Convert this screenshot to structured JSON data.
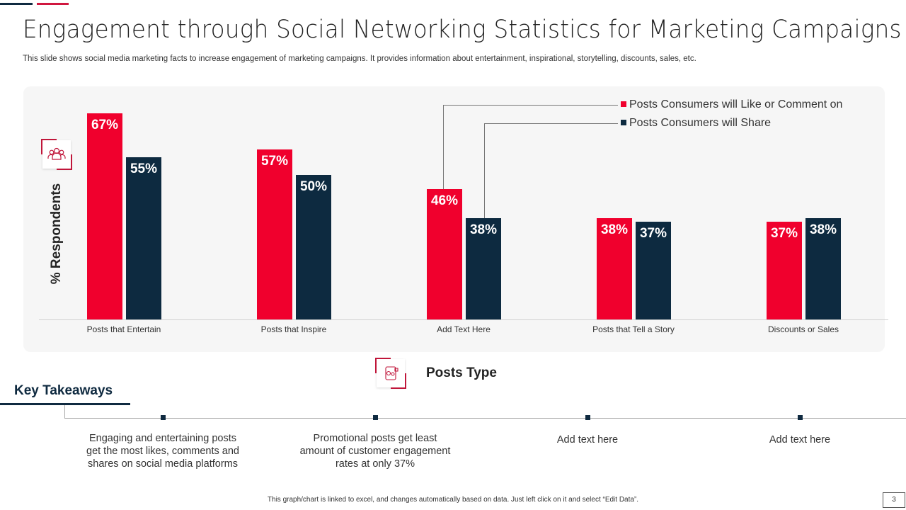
{
  "title": "Engagement through Social Networking Statistics for Marketing Campaigns",
  "subtitle": "This slide shows social media marketing facts to increase engagement of marketing campaigns. It provides information about entertainment, inspirational, storytelling, discounts, sales, etc.",
  "colors": {
    "red": "#f0002d",
    "navy": "#0d2a40"
  },
  "chart_data": {
    "type": "bar",
    "ylabel": "% Respondents",
    "xlabel": "Posts Type",
    "categories": [
      "Posts that Entertain",
      "Posts that Inspire",
      "Add Text Here",
      "Posts that Tell a Story",
      "Discounts or Sales"
    ],
    "series": [
      {
        "name": "Posts Consumers will Like or Comment on",
        "values": [
          67,
          57,
          46,
          38,
          37
        ],
        "labels": [
          "67%",
          "57%",
          "46%",
          "38%",
          "37%"
        ]
      },
      {
        "name": "Posts Consumers will Share",
        "values": [
          55,
          50,
          38,
          37,
          38
        ],
        "labels": [
          "55%",
          "50%",
          "38%",
          "37%",
          "38%"
        ]
      }
    ],
    "ylim": [
      10,
      70
    ],
    "legend": "top-right"
  },
  "takeaways": {
    "heading": "Key Takeaways",
    "items": [
      "Engaging and entertaining posts get the most likes, comments and shares on social media platforms",
      "Promotional posts get least amount of customer engagement rates at only 37%",
      "Add text here",
      "Add text here"
    ]
  },
  "footer": {
    "note": "This graph/chart is linked to excel, and changes automatically based on data. Just left click on it and select “Edit Data”.",
    "page": "3"
  }
}
